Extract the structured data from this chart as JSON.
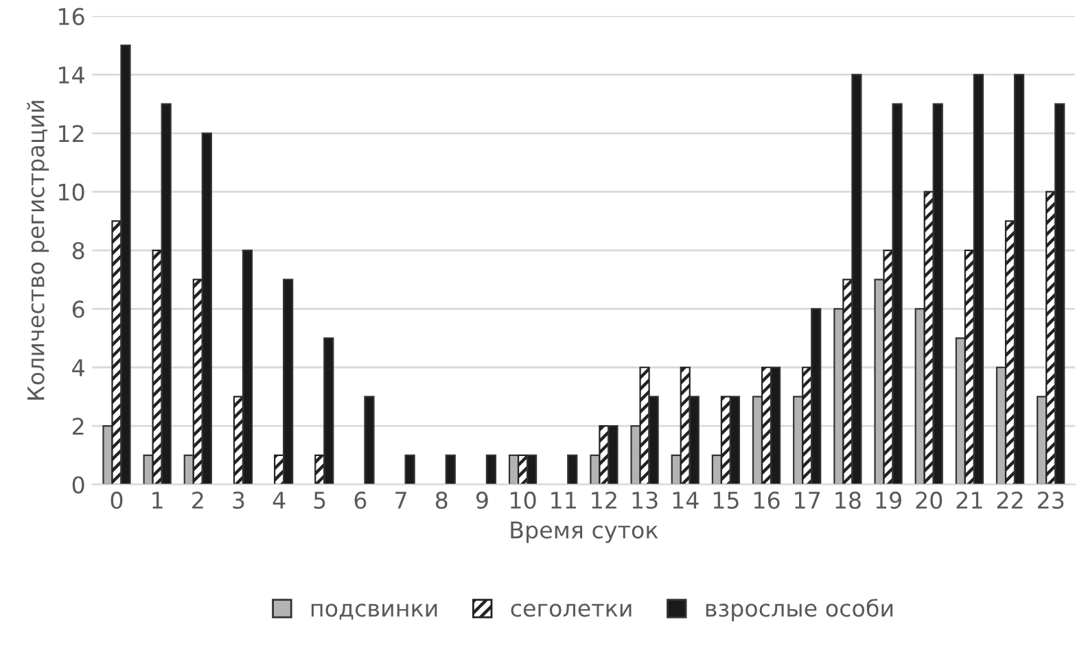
{
  "chart_data": {
    "type": "bar",
    "xlabel": "Время суток",
    "ylabel": "Количество регистраций",
    "categories": [
      "0",
      "1",
      "2",
      "3",
      "4",
      "5",
      "6",
      "7",
      "8",
      "9",
      "10",
      "11",
      "12",
      "13",
      "14",
      "15",
      "16",
      "17",
      "18",
      "19",
      "20",
      "21",
      "22",
      "23"
    ],
    "series": [
      {
        "name": "подсвинки",
        "color": "#b3b3b3",
        "values": [
          2,
          1,
          1,
          0,
          0,
          0,
          0,
          0,
          0,
          0,
          1,
          0,
          1,
          2,
          1,
          1,
          3,
          3,
          6,
          7,
          6,
          5,
          4,
          3
        ]
      },
      {
        "name": "сеголетки",
        "color": "#222222",
        "values": [
          9,
          8,
          7,
          3,
          1,
          1,
          0,
          0,
          0,
          0,
          1,
          0,
          2,
          4,
          4,
          3,
          4,
          4,
          7,
          8,
          10,
          8,
          9,
          10
        ]
      },
      {
        "name": "взрослые особи",
        "color": "#1a1a1a",
        "values": [
          15,
          13,
          12,
          8,
          7,
          5,
          3,
          1,
          1,
          1,
          1,
          1,
          2,
          3,
          3,
          3,
          4,
          6,
          14,
          13,
          13,
          14,
          14,
          13
        ]
      }
    ],
    "ylim": [
      0,
      16
    ],
    "yticks": [
      0,
      2,
      4,
      6,
      8,
      10,
      12,
      14,
      16
    ],
    "grid": "y",
    "legend": "bottom"
  }
}
